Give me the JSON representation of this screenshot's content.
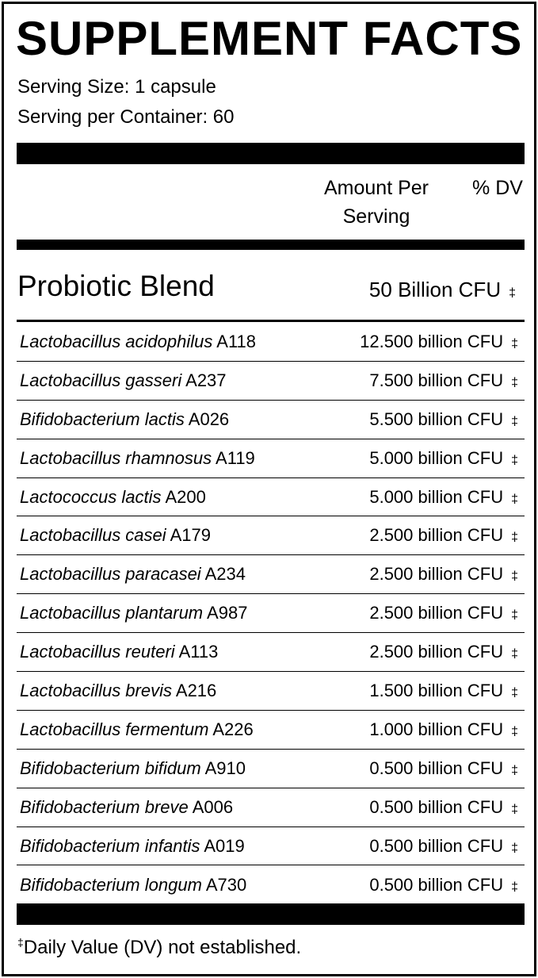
{
  "title": "SUPPLEMENT FACTS",
  "serving_size": "Serving Size: 1 capsule",
  "servings_per_container": "Serving per Container: 60",
  "header": {
    "amount_line1": "Amount Per",
    "amount_line2": "Serving",
    "dv": "% DV"
  },
  "blend": {
    "name": "Probiotic Blend",
    "amount": "50 Billion CFU",
    "dv": "‡"
  },
  "rows": [
    {
      "species": "Lactobacillus acidophilus",
      "strain": "A118",
      "amount": "12.500 billion CFU",
      "dv": "‡"
    },
    {
      "species": "Lactobacillus gasseri",
      "strain": "A237",
      "amount": "7.500 billion CFU",
      "dv": "‡"
    },
    {
      "species": "Bifidobacterium lactis",
      "strain": "A026",
      "amount": "5.500 billion CFU",
      "dv": "‡"
    },
    {
      "species": "Lactobacillus rhamnosus",
      "strain": "A119",
      "amount": "5.000 billion CFU",
      "dv": "‡"
    },
    {
      "species": "Lactococcus lactis",
      "strain": "A200",
      "amount": "5.000 billion CFU",
      "dv": "‡"
    },
    {
      "species": "Lactobacillus casei",
      "strain": "A179",
      "amount": "2.500 billion CFU",
      "dv": "‡"
    },
    {
      "species": "Lactobacillus paracasei",
      "strain": "A234",
      "amount": "2.500 billion CFU",
      "dv": "‡"
    },
    {
      "species": "Lactobacillus plantarum",
      "strain": "A987",
      "amount": "2.500 billion CFU",
      "dv": "‡"
    },
    {
      "species": "Lactobacillus reuteri",
      "strain": "A113",
      "amount": "2.500 billion CFU",
      "dv": "‡"
    },
    {
      "species": "Lactobacillus brevis",
      "strain": "A216",
      "amount": "1.500 billion CFU",
      "dv": "‡"
    },
    {
      "species": "Lactobacillus fermentum",
      "strain": "A226",
      "amount": "1.000 billion CFU",
      "dv": "‡"
    },
    {
      "species": "Bifidobacterium bifidum",
      "strain": "A910",
      "amount": "0.500 billion CFU",
      "dv": "‡"
    },
    {
      "species": "Bifidobacterium breve",
      "strain": "A006",
      "amount": "0.500 billion CFU",
      "dv": "‡"
    },
    {
      "species": "Bifidobacterium infantis",
      "strain": "A019",
      "amount": "0.500 billion CFU",
      "dv": "‡"
    },
    {
      "species": "Bifidobacterium longum",
      "strain": "A730",
      "amount": "0.500 billion CFU",
      "dv": "‡"
    }
  ],
  "footnote": {
    "symbol": "‡",
    "text": "Daily Value (DV) not established."
  }
}
